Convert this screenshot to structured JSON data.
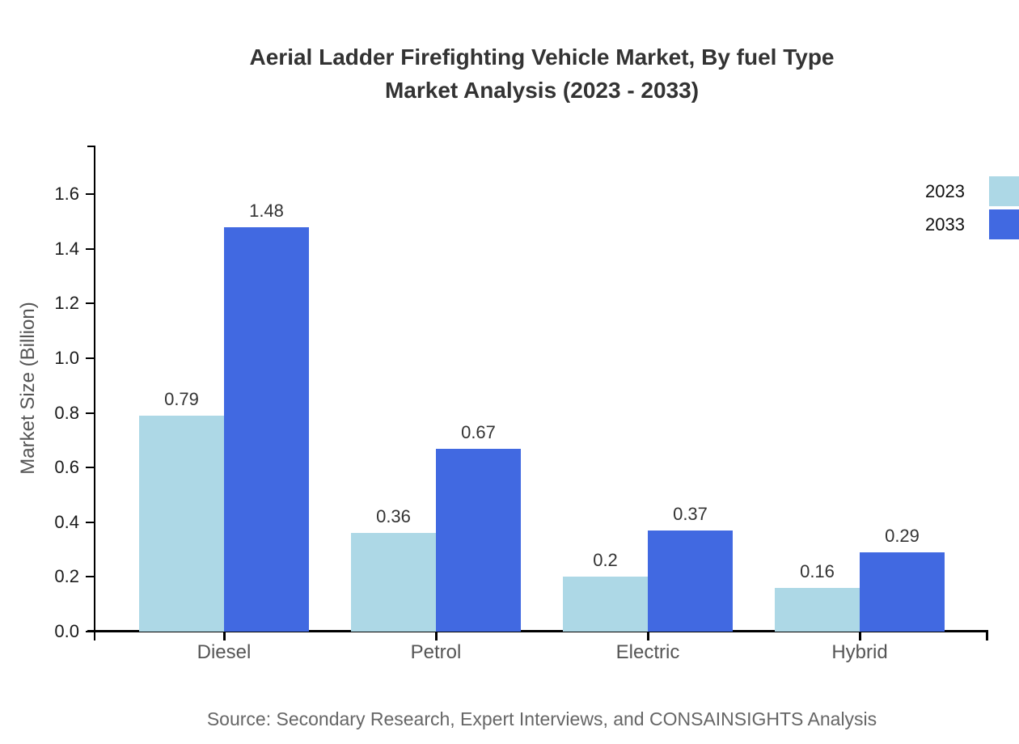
{
  "title": {
    "line1": "Aerial Ladder Firefighting Vehicle Market, By fuel Type",
    "line2": "Market Analysis (2023 - 2033)"
  },
  "y_axis": {
    "label": "Market Size (Billion)",
    "tick_labels": [
      "0.0",
      "0.2",
      "0.4",
      "0.6",
      "0.8",
      "1.0",
      "1.2",
      "1.4",
      "1.6"
    ]
  },
  "legend": [
    {
      "label": "2023",
      "color": "#ADD8E6"
    },
    {
      "label": "2033",
      "color": "#4169E1"
    }
  ],
  "source": "Source: Secondary Research, Expert Interviews, and CONSAINSIGHTS Analysis",
  "chart_data": {
    "type": "bar",
    "categories": [
      "Diesel",
      "Petrol",
      "Electric",
      "Hybrid"
    ],
    "series": [
      {
        "name": "2023",
        "color": "#ADD8E6",
        "values": [
          0.79,
          0.36,
          0.2,
          0.16
        ]
      },
      {
        "name": "2033",
        "color": "#4169E1",
        "values": [
          1.48,
          0.67,
          0.37,
          0.29
        ]
      }
    ],
    "title": "Aerial Ladder Firefighting Vehicle Market, By fuel Type Market Analysis (2023 - 2033)",
    "xlabel": "",
    "ylabel": "Market Size (Billion)",
    "ylim": [
      0,
      1.78
    ],
    "yticks": [
      0.0,
      0.2,
      0.4,
      0.6,
      0.8,
      1.0,
      1.2,
      1.4,
      1.6
    ],
    "grid": false,
    "legend_position": "upper-right",
    "data_labels": true
  }
}
